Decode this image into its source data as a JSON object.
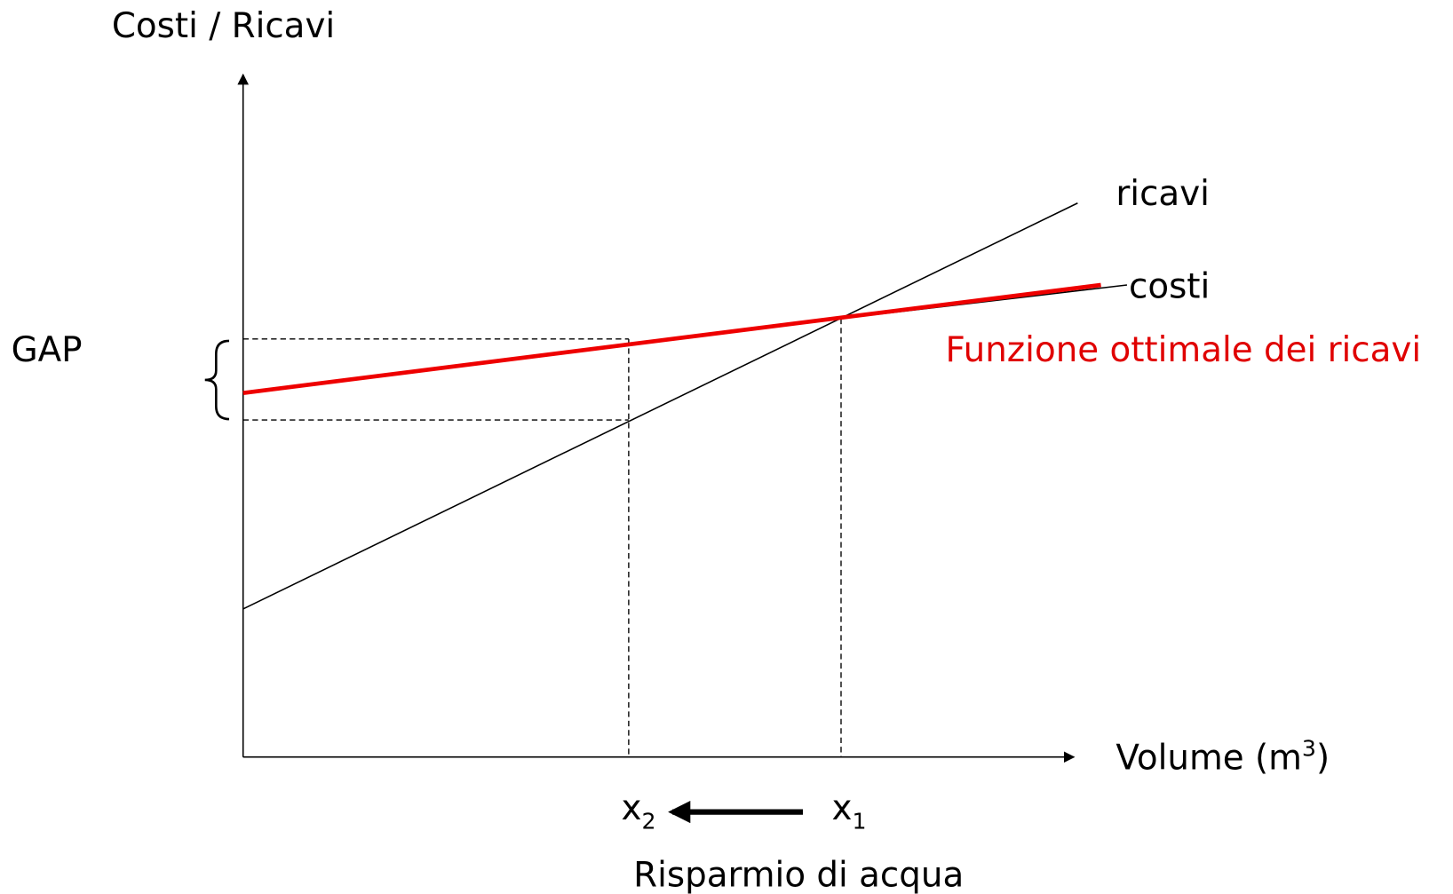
{
  "y_axis_label": "Costi / Ricavi",
  "x_axis_label": {
    "text": "Volume (m",
    "sup": "3",
    "end": ")"
  },
  "lines": {
    "revenue": "ricavi",
    "costs": "costi",
    "optimal": "Funzione ottimale dei ricavi"
  },
  "gap_label": "GAP",
  "points": [
    {
      "label": "x",
      "sub": "2"
    },
    {
      "label": "x",
      "sub": "1"
    }
  ],
  "caption": "Risparmio di acqua"
}
